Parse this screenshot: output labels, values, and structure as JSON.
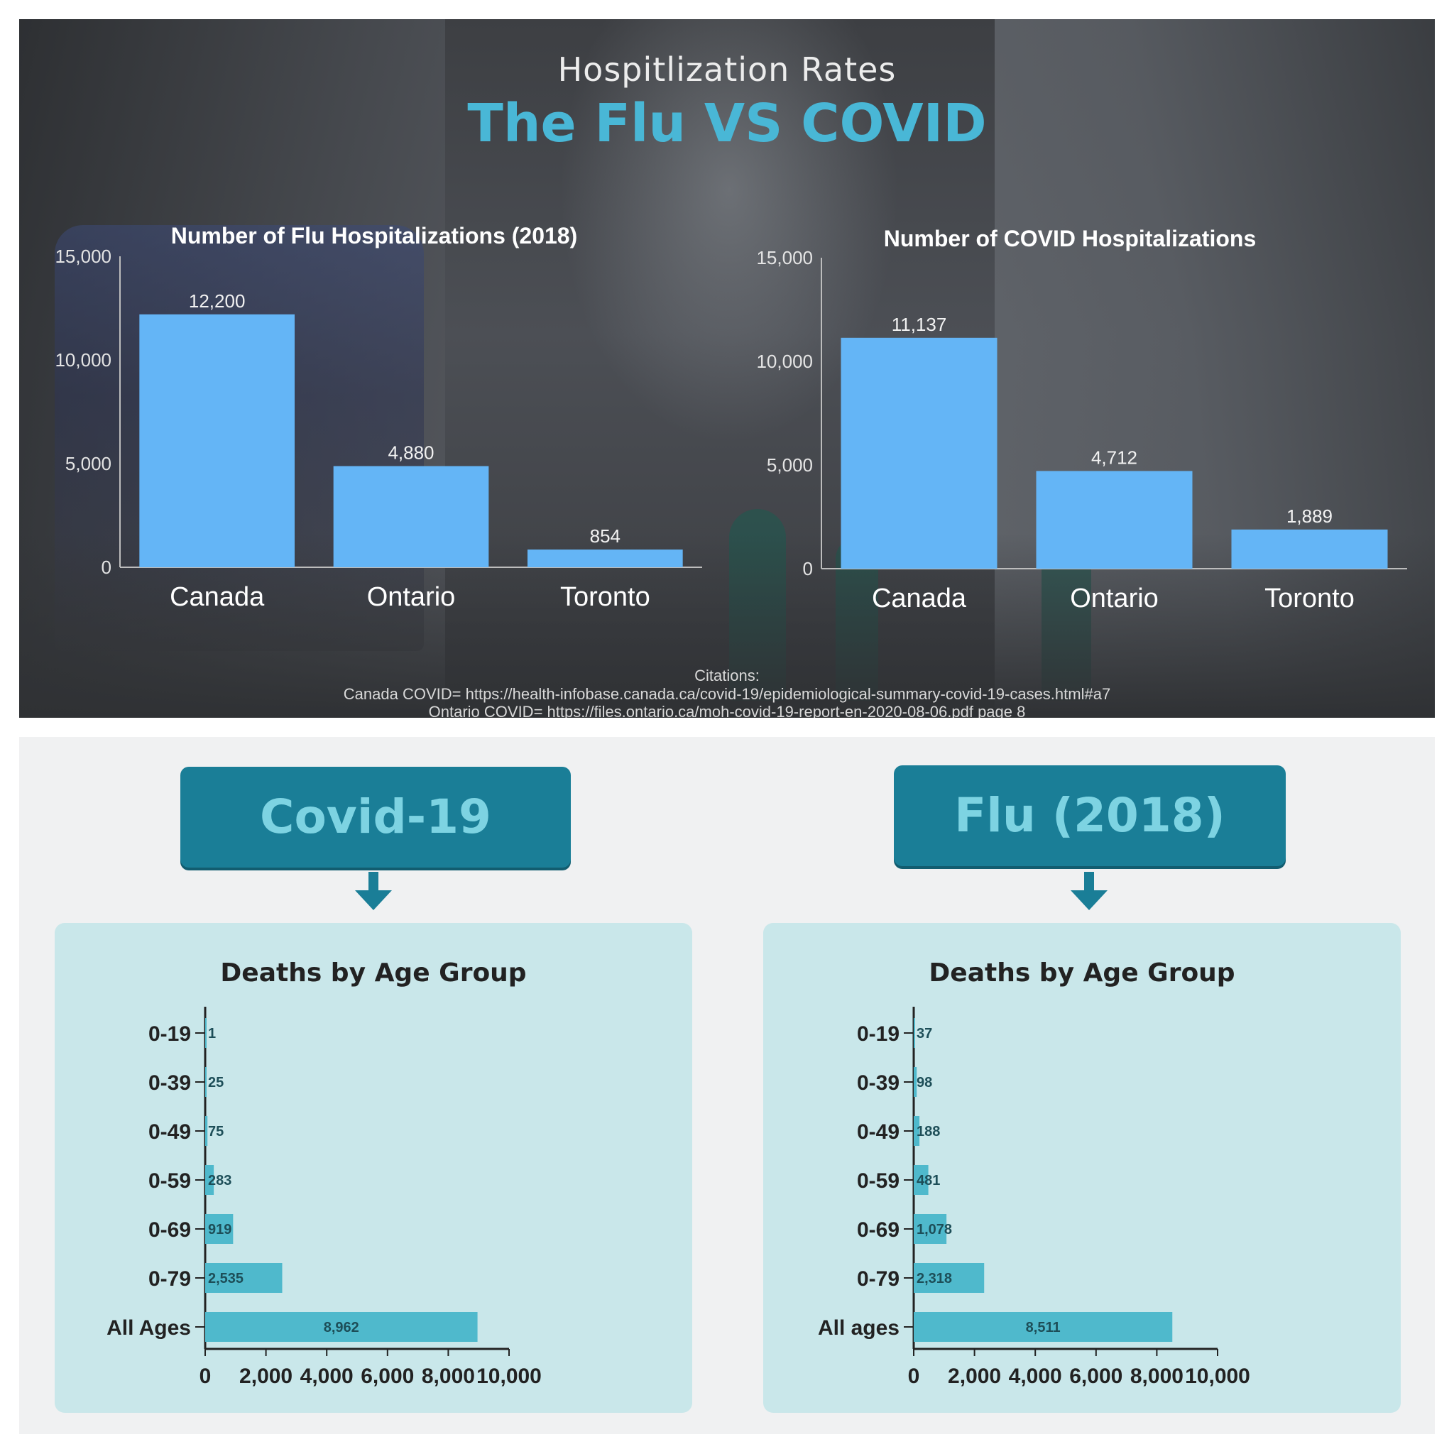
{
  "top": {
    "subtitle": "Hospitlization Rates",
    "title": "The Flu VS COVID",
    "citations_label": "Citations:",
    "citation_1": "Canada COVID= https://health-infobase.canada.ca/covid-19/epidemiological-summary-covid-19-cases.html#a7",
    "citation_2": "Ontario COVID= https://files.ontario.ca/moh-covid-19-report-en-2020-08-06.pdf page 8"
  },
  "bottom": {
    "covid_header": "Covid-19",
    "flu_header": "Flu (2018)"
  },
  "colors": {
    "hosp_bar": "#64b5f6",
    "title_accent": "#49b7d6",
    "death_bar": "#4fb9cc",
    "header_box": "#1a7e97",
    "card_bg": "#c9e7ea"
  },
  "chart_data": [
    {
      "type": "bar",
      "title": "Number of Flu Hospitalizations (2018)",
      "categories": [
        "Canada",
        "Ontario",
        "Toronto"
      ],
      "values": [
        12200,
        4880,
        854
      ],
      "value_labels": [
        "12,200",
        "4,880",
        "854"
      ],
      "ylim": [
        0,
        15000
      ],
      "yticks": [
        0,
        5000,
        10000,
        15000
      ],
      "ytick_labels": [
        "0",
        "5,000",
        "10,000",
        "15,000"
      ],
      "grid": false
    },
    {
      "type": "bar",
      "title": "Number of COVID Hospitalizations",
      "categories": [
        "Canada",
        "Ontario",
        "Toronto"
      ],
      "values": [
        11137,
        4712,
        1889
      ],
      "value_labels": [
        "11,137",
        "4,712",
        "1,889"
      ],
      "ylim": [
        0,
        15000
      ],
      "yticks": [
        0,
        5000,
        10000,
        15000
      ],
      "ytick_labels": [
        "0",
        "5,000",
        "10,000",
        "15,000"
      ],
      "grid": false
    },
    {
      "type": "bar",
      "orientation": "horizontal",
      "panel": "Covid-19",
      "title": "Deaths by Age Group",
      "categories": [
        "0-19",
        "0-39",
        "0-49",
        "0-59",
        "0-69",
        "0-79",
        "All Ages"
      ],
      "values": [
        1,
        25,
        75,
        283,
        919,
        2535,
        8962
      ],
      "value_labels": [
        "1",
        "25",
        "75",
        "283",
        "919",
        "2,535",
        "8,962"
      ],
      "xlim": [
        0,
        10000
      ],
      "xticks": [
        0,
        2000,
        4000,
        6000,
        8000,
        10000
      ],
      "xtick_labels": [
        "0",
        "2,000",
        "4,000",
        "6,000",
        "8,000",
        "10,000"
      ],
      "grid": false
    },
    {
      "type": "bar",
      "orientation": "horizontal",
      "panel": "Flu (2018)",
      "title": "Deaths by Age Group",
      "categories": [
        "0-19",
        "0-39",
        "0-49",
        "0-59",
        "0-69",
        "0-79",
        "All ages"
      ],
      "values": [
        37,
        98,
        188,
        481,
        1078,
        2318,
        8511
      ],
      "value_labels": [
        "37",
        "98",
        "188",
        "481",
        "1,078",
        "2,318",
        "8,511"
      ],
      "xlim": [
        0,
        10000
      ],
      "xticks": [
        0,
        2000,
        4000,
        6000,
        8000,
        10000
      ],
      "xtick_labels": [
        "0",
        "2,000",
        "4,000",
        "6,000",
        "8,000",
        "10,000"
      ],
      "grid": false
    }
  ]
}
